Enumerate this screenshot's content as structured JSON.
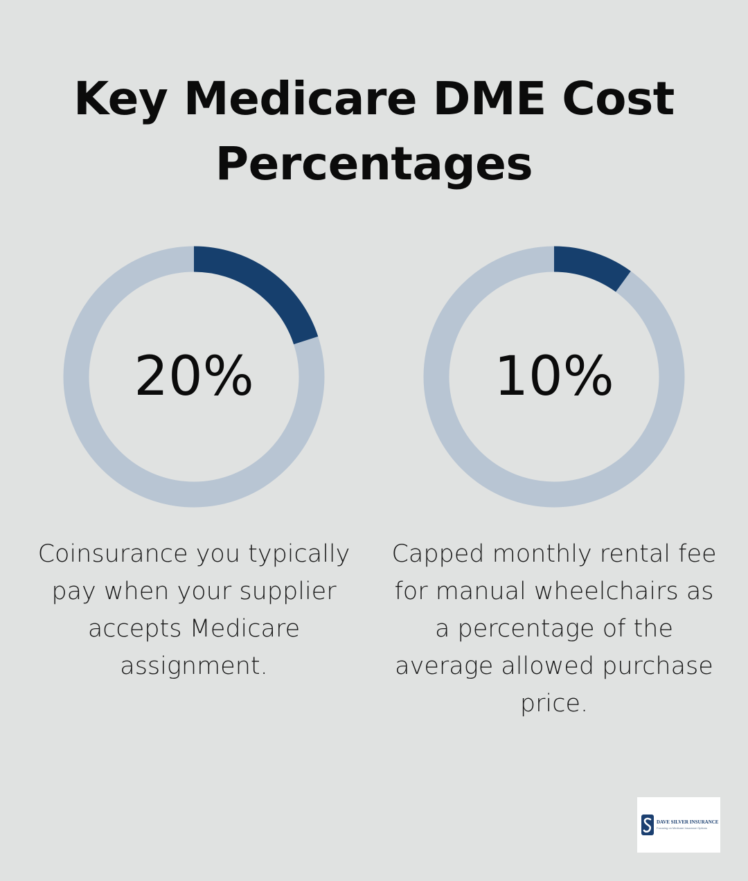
{
  "title": "Key Medicare DME Cost Percentages",
  "colors": {
    "background": "#e0e2e1",
    "ring_track": "#b8c5d3",
    "ring_fill": "#163f6d",
    "text": "#0b0b0b"
  },
  "chart_data": [
    {
      "type": "pie",
      "variant": "donut",
      "value": 20,
      "max": 100,
      "label": "20%",
      "caption": "Coinsurance you typically pay when your supplier accepts Medicare assignment."
    },
    {
      "type": "pie",
      "variant": "donut",
      "value": 10,
      "max": 100,
      "label": "10%",
      "caption": "Capped monthly rental fee for manual wheelchairs as a percentage of the average allowed purchase price."
    }
  ],
  "logo": {
    "name": "DAVE SILVER INSURANCE",
    "tagline": "Focusing on Medicare Insurance Options",
    "icon": "s-monogram-icon"
  }
}
